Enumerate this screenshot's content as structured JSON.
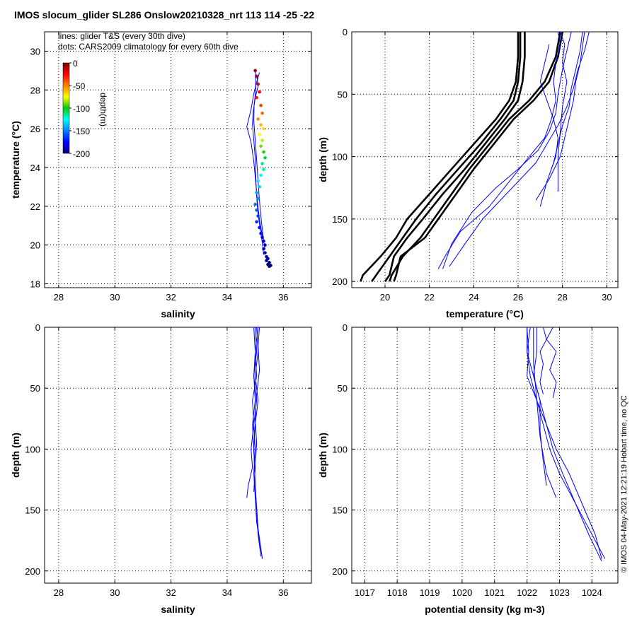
{
  "title": "IMOS slocum_glider SL286 Onslow20210328_nrt 113  114  -25  -22",
  "legend_lines": "lines: glider T&S (every 30th dive)",
  "legend_dots": "dots: CARS2009 climatology for every 60th dive",
  "side_credit": "© IMOS 04-May-2021 12:21:19 Hobart time, no QC",
  "colorbar": {
    "label": "depth(m)",
    "ticks": [
      "0",
      "-50",
      "-100",
      "-150",
      "-200"
    ],
    "range": [
      -200,
      0
    ]
  },
  "colors": {
    "glider_blue": "#0000ff",
    "climatology_black": "#000000"
  },
  "chart_data": [
    {
      "id": "ts",
      "type": "scatter",
      "xlabel": "salinity",
      "ylabel": "temperature (°C)",
      "xlim": [
        27.5,
        37
      ],
      "ylim": [
        17.8,
        31
      ],
      "xticks": [
        "28",
        "30",
        "32",
        "34",
        "36"
      ],
      "yticks": [
        "18",
        "20",
        "22",
        "24",
        "26",
        "28",
        "30"
      ],
      "grid": true,
      "series": [
        {
          "kind": "line",
          "x": [
            35.05,
            35.1,
            35.0,
            34.92,
            34.9,
            34.95,
            35.0,
            35.02,
            35.05,
            35.1,
            35.18,
            35.25,
            35.3
          ],
          "y": [
            28.8,
            28.2,
            27.6,
            26.8,
            26.2,
            25.4,
            24.5,
            23.5,
            22.5,
            21.6,
            20.8,
            20.1,
            19.5
          ]
        },
        {
          "kind": "line",
          "x": [
            35.15,
            35.05,
            34.95,
            34.85,
            34.7,
            34.85,
            34.95,
            35.02,
            35.08,
            35.15,
            35.25,
            35.35
          ],
          "y": [
            28.9,
            28.4,
            27.8,
            27.0,
            26.1,
            25.3,
            24.3,
            23.2,
            22.2,
            21.3,
            20.5,
            19.8
          ]
        },
        {
          "kind": "line",
          "x": [
            35.0,
            35.02,
            34.96,
            34.95,
            35.0,
            35.05,
            35.1,
            35.15,
            35.22,
            35.3
          ],
          "y": [
            29.0,
            28.0,
            27.2,
            26.4,
            25.4,
            24.4,
            23.3,
            22.3,
            21.2,
            20.2
          ]
        }
      ],
      "dots": {
        "salinity": [
          35.0,
          35.05,
          35.1,
          35.15,
          35.05,
          35.2,
          35.25,
          35.1,
          35.2,
          35.3,
          35.15,
          35.25,
          35.2,
          35.3,
          35.35,
          35.25,
          35.3,
          35.2,
          35.1,
          35.15,
          35.05,
          35.1,
          35.0,
          35.05,
          35.1,
          35.05,
          35.15,
          35.2,
          35.25,
          35.3,
          35.35,
          35.3,
          35.35,
          35.4,
          35.4,
          35.45,
          35.5,
          35.45,
          35.5,
          35.55
        ],
        "temperature": [
          29.0,
          28.7,
          28.3,
          27.9,
          27.6,
          27.2,
          26.8,
          26.5,
          26.2,
          26.0,
          25.7,
          25.4,
          25.1,
          24.8,
          24.5,
          24.2,
          23.9,
          23.6,
          23.3,
          23.0,
          22.7,
          22.4,
          22.1,
          21.8,
          21.5,
          21.2,
          20.9,
          20.6,
          20.4,
          20.2,
          20.0,
          19.8,
          19.6,
          19.4,
          19.2,
          19.0,
          18.9,
          19.3,
          19.1,
          18.95
        ],
        "depth": [
          -2,
          -8,
          -15,
          -22,
          -30,
          -38,
          -45,
          -52,
          -60,
          -68,
          -75,
          -82,
          -90,
          -97,
          -105,
          -112,
          -118,
          -125,
          -130,
          -136,
          -142,
          -148,
          -153,
          -158,
          -163,
          -168,
          -172,
          -176,
          -180,
          -184,
          -188,
          -191,
          -194,
          -196,
          -198,
          -200,
          -200,
          -195,
          -199,
          -200
        ]
      }
    },
    {
      "id": "temp_depth",
      "type": "line",
      "xlabel": "temperature (°C)",
      "ylabel": "depth (m)",
      "xlim": [
        18.5,
        30.5
      ],
      "ylim": [
        0,
        205
      ],
      "yreversed": true,
      "xticks": [
        "20",
        "22",
        "24",
        "26",
        "28",
        "30"
      ],
      "yticks": [
        "0",
        "50",
        "100",
        "150",
        "200"
      ],
      "grid": true,
      "climatology": [
        {
          "x": [
            26.0,
            26.0,
            25.9,
            25.6,
            25.0,
            24.0,
            23.0,
            22.0,
            21.0,
            20.5,
            19.8,
            19.0,
            18.9
          ],
          "depth": [
            0,
            20,
            40,
            55,
            70,
            90,
            110,
            130,
            150,
            165,
            180,
            195,
            200
          ]
        },
        {
          "x": [
            26.1,
            26.1,
            26.0,
            25.8,
            25.2,
            24.3,
            23.3,
            22.3,
            21.4,
            20.8,
            20.2,
            19.6,
            19.4
          ],
          "depth": [
            0,
            20,
            40,
            55,
            70,
            90,
            110,
            130,
            150,
            165,
            180,
            195,
            200
          ]
        },
        {
          "x": [
            26.3,
            26.3,
            26.2,
            26.0,
            25.4,
            24.5,
            23.6,
            22.6,
            21.7,
            21.0,
            20.4,
            20.2,
            20.0
          ],
          "depth": [
            0,
            20,
            40,
            55,
            70,
            90,
            110,
            130,
            150,
            165,
            180,
            195,
            200
          ]
        },
        {
          "x": [
            27.9,
            27.7,
            27.2,
            26.5,
            25.6,
            24.7,
            23.8,
            23.0,
            22.2,
            21.6,
            20.8,
            20.3,
            20.2
          ],
          "depth": [
            0,
            20,
            40,
            55,
            70,
            90,
            110,
            130,
            150,
            165,
            180,
            195,
            200
          ]
        },
        {
          "x": [
            28.0,
            27.8,
            27.4,
            26.7,
            25.8,
            24.9,
            24.0,
            23.2,
            22.4,
            21.8,
            20.7,
            20.5,
            20.4
          ],
          "depth": [
            0,
            20,
            40,
            55,
            70,
            90,
            110,
            130,
            150,
            165,
            180,
            195,
            200
          ]
        }
      ],
      "glider": [
        {
          "x": [
            27.8,
            27.9,
            27.7,
            27.6,
            27.7,
            27.5,
            27.2,
            26.5,
            25.6,
            24.7,
            23.4,
            22.7,
            22.4
          ],
          "depth": [
            0,
            10,
            25,
            40,
            55,
            70,
            85,
            100,
            120,
            140,
            160,
            180,
            190
          ]
        },
        {
          "x": [
            28.4,
            28.2,
            28.0,
            27.8,
            27.7,
            27.4,
            26.9,
            26.0,
            25.0,
            23.9,
            23.0,
            22.6
          ],
          "depth": [
            0,
            15,
            30,
            50,
            65,
            80,
            95,
            110,
            125,
            145,
            170,
            190
          ]
        },
        {
          "x": [
            29.2,
            29.0,
            28.7,
            28.5,
            28.2,
            27.8,
            27.3,
            26.8,
            26.0,
            25.2,
            24.4,
            23.6,
            22.9
          ],
          "depth": [
            0,
            15,
            30,
            45,
            60,
            75,
            90,
            105,
            120,
            135,
            150,
            170,
            188
          ]
        },
        {
          "x": [
            28.9,
            28.8,
            28.6,
            28.4,
            28.3,
            28.0,
            27.8,
            27.6,
            27.3,
            27.0
          ],
          "depth": [
            0,
            15,
            30,
            45,
            60,
            75,
            90,
            105,
            120,
            140
          ]
        },
        {
          "x": [
            29.0,
            28.9,
            28.8,
            28.6,
            28.5,
            28.3,
            28.1,
            27.9,
            27.4,
            26.8
          ],
          "depth": [
            0,
            12,
            25,
            40,
            55,
            70,
            85,
            100,
            118,
            135
          ]
        },
        {
          "x": [
            27.9,
            28.1,
            28.0,
            28.2,
            28.0,
            27.9,
            27.8,
            27.8
          ],
          "depth": [
            0,
            10,
            25,
            40,
            60,
            80,
            100,
            128
          ]
        },
        {
          "x": [
            27.4,
            27.2,
            27.0,
            27.3,
            27.6,
            27.8,
            27.7,
            27.5
          ],
          "depth": [
            10,
            25,
            40,
            55,
            70,
            85,
            100,
            110
          ]
        }
      ]
    },
    {
      "id": "sal_depth",
      "type": "line",
      "xlabel": "salinity",
      "ylabel": "depth (m)",
      "xlim": [
        27.5,
        37
      ],
      "ylim": [
        0,
        210
      ],
      "yreversed": true,
      "xticks": [
        "28",
        "30",
        "32",
        "34",
        "36"
      ],
      "yticks": [
        "0",
        "50",
        "100",
        "150",
        "200"
      ],
      "grid": true,
      "glider": [
        {
          "x": [
            35.0,
            35.05,
            34.95,
            35.05,
            34.95,
            35.0,
            34.95,
            35.0,
            35.05,
            35.15,
            35.25
          ],
          "depth": [
            0,
            20,
            40,
            60,
            80,
            100,
            120,
            140,
            160,
            175,
            190
          ]
        },
        {
          "x": [
            35.1,
            35.0,
            35.05,
            34.9,
            34.95,
            34.85,
            34.9,
            34.75,
            34.7
          ],
          "depth": [
            0,
            20,
            40,
            60,
            80,
            100,
            115,
            130,
            140
          ]
        },
        {
          "x": [
            35.05,
            35.1,
            35.0,
            35.1,
            35.0,
            34.95,
            35.0,
            35.05,
            35.1,
            35.2
          ],
          "depth": [
            0,
            20,
            40,
            60,
            80,
            100,
            130,
            150,
            170,
            188
          ]
        },
        {
          "x": [
            35.15,
            35.1,
            35.15,
            35.05,
            35.0,
            35.05,
            35.0,
            34.95
          ],
          "depth": [
            0,
            15,
            35,
            55,
            75,
            95,
            115,
            135
          ]
        },
        {
          "x": [
            34.95,
            35.0,
            34.95,
            35.0,
            34.9,
            34.95,
            35.0,
            35.1,
            35.25
          ],
          "depth": [
            0,
            20,
            40,
            60,
            80,
            100,
            130,
            165,
            190
          ]
        }
      ]
    },
    {
      "id": "dens_depth",
      "type": "line",
      "xlabel": "potential density (kg m-3)",
      "ylabel": "depth (m)",
      "xlim": [
        1016.6,
        1024.8
      ],
      "ylim": [
        0,
        210
      ],
      "yreversed": true,
      "xticks": [
        "1017",
        "1018",
        "1019",
        "1020",
        "1021",
        "1022",
        "1023",
        "1024"
      ],
      "yticks": [
        "0",
        "50",
        "100",
        "150",
        "200"
      ],
      "grid": true,
      "glider": [
        {
          "x": [
            1022.0,
            1022.0,
            1022.1,
            1022.3,
            1022.5,
            1022.7,
            1023.0,
            1023.4,
            1023.8,
            1024.2,
            1024.4
          ],
          "depth": [
            0,
            20,
            40,
            60,
            80,
            100,
            120,
            140,
            160,
            180,
            190
          ]
        },
        {
          "x": [
            1022.1,
            1022.0,
            1022.2,
            1022.4,
            1022.6,
            1022.9,
            1023.3,
            1023.7,
            1024.1,
            1024.3
          ],
          "depth": [
            0,
            20,
            40,
            60,
            80,
            100,
            120,
            145,
            170,
            190
          ]
        },
        {
          "x": [
            1022.0,
            1022.05,
            1022.0,
            1022.3,
            1022.6,
            1022.8,
            1023.1,
            1023.5,
            1023.9,
            1024.3
          ],
          "depth": [
            0,
            20,
            40,
            60,
            80,
            100,
            120,
            145,
            170,
            192
          ]
        },
        {
          "x": [
            1022.8,
            1022.6,
            1022.9,
            1022.7,
            1022.9,
            1022.8
          ],
          "depth": [
            0,
            10,
            20,
            35,
            45,
            58
          ]
        },
        {
          "x": [
            1022.5,
            1022.6,
            1022.4,
            1022.5,
            1022.4,
            1022.5
          ],
          "depth": [
            0,
            10,
            20,
            30,
            45,
            55
          ]
        },
        {
          "x": [
            1022.3,
            1022.3,
            1022.2,
            1022.4,
            1022.4,
            1022.5,
            1022.6
          ],
          "depth": [
            0,
            20,
            40,
            60,
            85,
            110,
            130
          ]
        },
        {
          "x": [
            1022.2,
            1022.2,
            1022.3,
            1022.4,
            1022.6,
            1022.9
          ],
          "depth": [
            0,
            30,
            60,
            90,
            120,
            140
          ]
        }
      ]
    }
  ]
}
